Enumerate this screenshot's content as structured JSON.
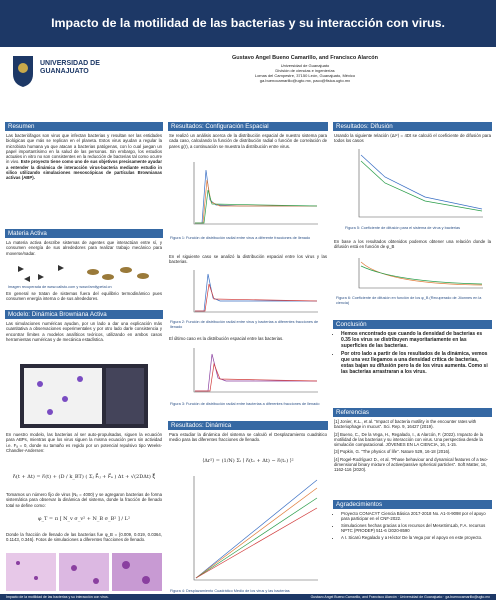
{
  "header": {
    "title": "Impacto de la motilidad de las bacterias y su interacción con virus.",
    "university": [
      "UNIVERSIDAD DE",
      "GUANAJUATO"
    ],
    "authors": "Gustavo Angel Bueno Camarillo, and Francisco Alarcón",
    "affiliation": [
      "Universidad de Guanajuato",
      "División de ciencias e ingenierías",
      "Lomas del Campestre, 37150 León, Guanajuato, México",
      "ga.buenocamarillo@ugto.mx, paco@fisica.ugto.mx"
    ]
  },
  "resumen": {
    "heading": "Resumen",
    "text": "Las bacteriófagos son virus que infectan bacterias y resultan ser las entidades biológicas que más se replican en el planeta. Estos virus ayudan a regular la microbiota humana ya que atacan a bacterias patógenas, con lo cual juegan un papel importantísimo en la salud de las personas. Sin embargo, los estudios actuales in vitro no son consistentes en la reducción de bacterias tal como ocurre in vivo.",
    "bold": "Este proyecto tiene como uno de sus objetivos precisamente ayudar a entender la dinámica de interacción virus-bacteria mediante estudio in silico utilizando simulaciones mesoscópicas de partículas Brownianas activas (ABP)."
  },
  "materia": {
    "heading": "Materia Activa",
    "text": "La materia activa describe sistemas de agentes que interactúan entre sí, y consumen energía de sus alrededores para realizar trabajo mecánico para moverse/nadar.",
    "caption": "Imagen recuperada de www.calisto.com y www.familypetal.cn",
    "text2": "En general se tratan de sistemas fuera del equilibrio termodinámico pues consumen energía interna o de sus alrededores."
  },
  "modelo": {
    "heading": "Modelo: Dinámica Browniana Activa",
    "text": "Las simulaciones numéricas ayudan, por un lado a dar una explicación más cuantitativa a observaciones experimentales y por otro lado darle consistencia y encontrar límites a modelos analíticos teóricos, utilizando en ambos casos herramientas numéricas y de mecánica estadística.",
    "text2": "En nuestro modelo, las bacterias al ser auto-propulsadas, siguen la ecuación para ABPs, mientras que los virus siguen la misma ecuación pero sin actividad i.e. Fₐ = 0, donde su tamaño es regido por un potencial repulsivo tipo Weeks-Chandler-Andersen:",
    "equation": "r⃗ᵢ(t + Δt) = r⃗ᵢ(t) + (D / k_BT) ( Σⱼ F⃗ᵢⱼ + F⃗ₐ ) Δt + √(2DΔt) ξ⃗",
    "text3": "Tomamos un número fijo de virus (Nᵥ = 4000) y se agregaron bacterias de forma sistemática para observar la dinámica del sistema, donde la fracción de llenado total se define como:",
    "equation2": "φ_T = π [ N_v σ_v² + N_B σ_B² ] / L²",
    "text4": "Donde la fracción de llenado de las bacterias fue φ_B = {0.009, 0.019, 0.0364, 0.1143, 0.346}. Fotos de simulaciones a diferentes fracciones de llenado."
  },
  "config": {
    "heading": "Resultados: Configuración Espacial",
    "text": "Se realizó un análisis acerca de la distribución espacial de nuestro sistema para cada caso, calculando la función de distribución radial o función de correlación de pares g(r), a continuación se muestra la distribución entre virus.",
    "caption1": "Figura 1: Función de distribución radial entre virus a diferente fracciones de llenado",
    "text2": "En el siguiente caso se analizó la distribución espacial entre los virus y las bacterias.",
    "caption2": "Figura 2: Función de distribución radial entre virus y bacterias a diferentes fracciones de llenado",
    "text3": "El último caso es la distribución espacial entre las bacterias.",
    "caption3": "Figura 3: Función de distribución radial entre bacterias a diferentes fracciones de llenado"
  },
  "dinamica": {
    "heading": "Resultados: Dinámica",
    "text": "Para estudiar la dinámica del sistema se calculó el Desplazamiento cuadrático medio para las diferentes fracciones de llenado.",
    "equation": "⟨Δr²⟩ = (1/N) Σᵢ ⟨ r⃗ᵢ(tₒ + Δt) − r⃗ᵢ(tₒ) ⟩²",
    "caption": "Figura 4: Desplazamiento Cuadrático Medio de los virus y las bacterias"
  },
  "difusion": {
    "heading": "Resultados: Difusión",
    "text": "Usando la siguiente relación ⟨Δr²⟩ = 4Dt se calculó el coeficiente de difusión para todos los casos",
    "caption1": "Figura 5: Coeficiente de difusión para el sistema de virus y bacterias",
    "text2": "En base a los resultados obtenidos podemos obtener una relación donde la difusión está en función de φ_B",
    "caption2": "Figura 6: Coeficiente de difusión en función de los φ_B (Recuperado de Jöonnes en la ciencia)"
  },
  "conclusion": {
    "heading": "Conclusión",
    "items": [
      "Hemos encontrado que cuando la densidad de bacterias es 0.35 los virus se distribuyen mayoritariamente en las superficies de las bacterias.",
      "Por otro lado a partir de los resultados de la dinámica, vemos que una vez llegamos a una densidad crítica de bacterias, estas bajan su difusión pero la de los virus aumenta. Como si las bacterias arrastraran a los virus."
    ]
  },
  "referencias": {
    "heading": "Referencias",
    "items": [
      "[1] Jonier, K.L., et al. \"Impact of bacteria motility in the encounter rates with bacteriophage in mucus\". Sci. Rep. 9, 16427 (2019).",
      "[2] Bueno, C., De la Vega, H., Regalado, I., & Alarcón, F. (2022). Impacto de la motilidad de las bacterias y su interacción con virus. Una perspectiva desde la simulación computacional. JÓVENES EN LA CIENCIA, 16, 1-15.",
      "[3] Popkin, G. \"The physics of life\". Nature 529, 16-18 (2016).",
      "[4] Rogel-Rodríguez D., et al. \"Phase behaviour and dynamical features of a two-dimensional binary mixture of active/passive spherical particles\". Soft Matter, 16, 1162-116 (2020)."
    ]
  },
  "agradecimientos": {
    "heading": "Agradecimientos",
    "items": [
      "Proyecto CONACYT Ciencia Básica 2017-2018 No. A1-S-9098 por el apoyo para participar en el CNF-2022.",
      "Simulaciones hechas gracias a los recursos del MeseSimLab, F.A. recursos NPTC (PRODEP) 511-6 /2020-8590",
      "A I. Sicarú Regalado y a Héctor De la Vega por el apoyo en este proyecto."
    ]
  },
  "footer": {
    "left": "Impacto de la motilidad de las bacterias y su interacción con virus.",
    "right": "Gustavo Angel Bueno Camarillo, and Francisco Alarcón · Universidad de Guanajuato · ga.buenocamarillo@ugto.mx"
  }
}
